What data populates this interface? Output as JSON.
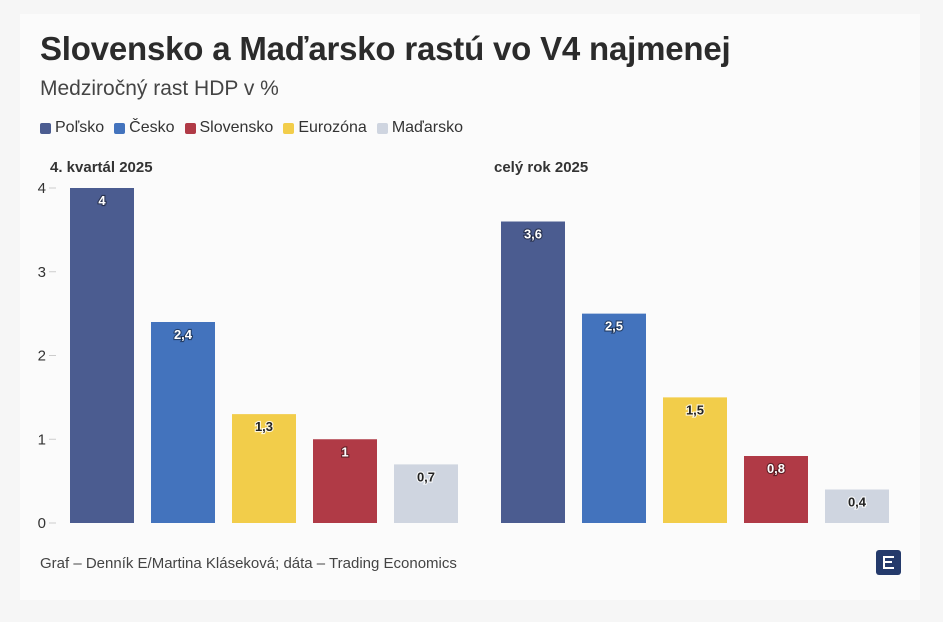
{
  "title": "Slovensko a Maďarsko rastú vo V4 najmenej",
  "subtitle": "Medziročný rast HDP v %",
  "source": "Graf – Denník E/Martina Kláseková; dáta – Trading Economics",
  "legend": [
    {
      "name": "Poľsko",
      "color": "#4b5c90"
    },
    {
      "name": "Česko",
      "color": "#4373bd"
    },
    {
      "name": "Slovensko",
      "color": "#b03a46"
    },
    {
      "name": "Eurozóna",
      "color": "#f2cd4a"
    },
    {
      "name": "Maďarsko",
      "color": "#cfd5e0"
    }
  ],
  "logo_icon": "denník-e-logo-icon",
  "chart_data": [
    {
      "type": "bar",
      "title": "4. kvartál 2025",
      "ylim": [
        0,
        4
      ],
      "yticks": [
        "0",
        "1",
        "2",
        "3",
        "4"
      ],
      "grid": false,
      "bars": [
        {
          "series": "Poľsko",
          "value": 4,
          "label": "4",
          "color": "#4b5c90",
          "label_style": "light"
        },
        {
          "series": "Česko",
          "value": 2.4,
          "label": "2,4",
          "color": "#4373bd",
          "label_style": "light"
        },
        {
          "series": "Eurozóna",
          "value": 1.3,
          "label": "1,3",
          "color": "#f2cd4a",
          "label_style": "dark"
        },
        {
          "series": "Slovensko",
          "value": 1,
          "label": "1",
          "color": "#b03a46",
          "label_style": "light"
        },
        {
          "series": "Maďarsko",
          "value": 0.7,
          "label": "0,7",
          "color": "#cfd5e0",
          "label_style": "dark"
        }
      ]
    },
    {
      "type": "bar",
      "title": "celý rok 2025",
      "ylim": [
        0,
        4
      ],
      "grid": false,
      "bars": [
        {
          "series": "Poľsko",
          "value": 3.6,
          "label": "3,6",
          "color": "#4b5c90",
          "label_style": "light"
        },
        {
          "series": "Česko",
          "value": 2.5,
          "label": "2,5",
          "color": "#4373bd",
          "label_style": "light"
        },
        {
          "series": "Eurozóna",
          "value": 1.5,
          "label": "1,5",
          "color": "#f2cd4a",
          "label_style": "dark"
        },
        {
          "series": "Slovensko",
          "value": 0.8,
          "label": "0,8",
          "color": "#b03a46",
          "label_style": "light"
        },
        {
          "series": "Maďarsko",
          "value": 0.4,
          "label": "0,4",
          "color": "#cfd5e0",
          "label_style": "dark"
        }
      ]
    }
  ]
}
